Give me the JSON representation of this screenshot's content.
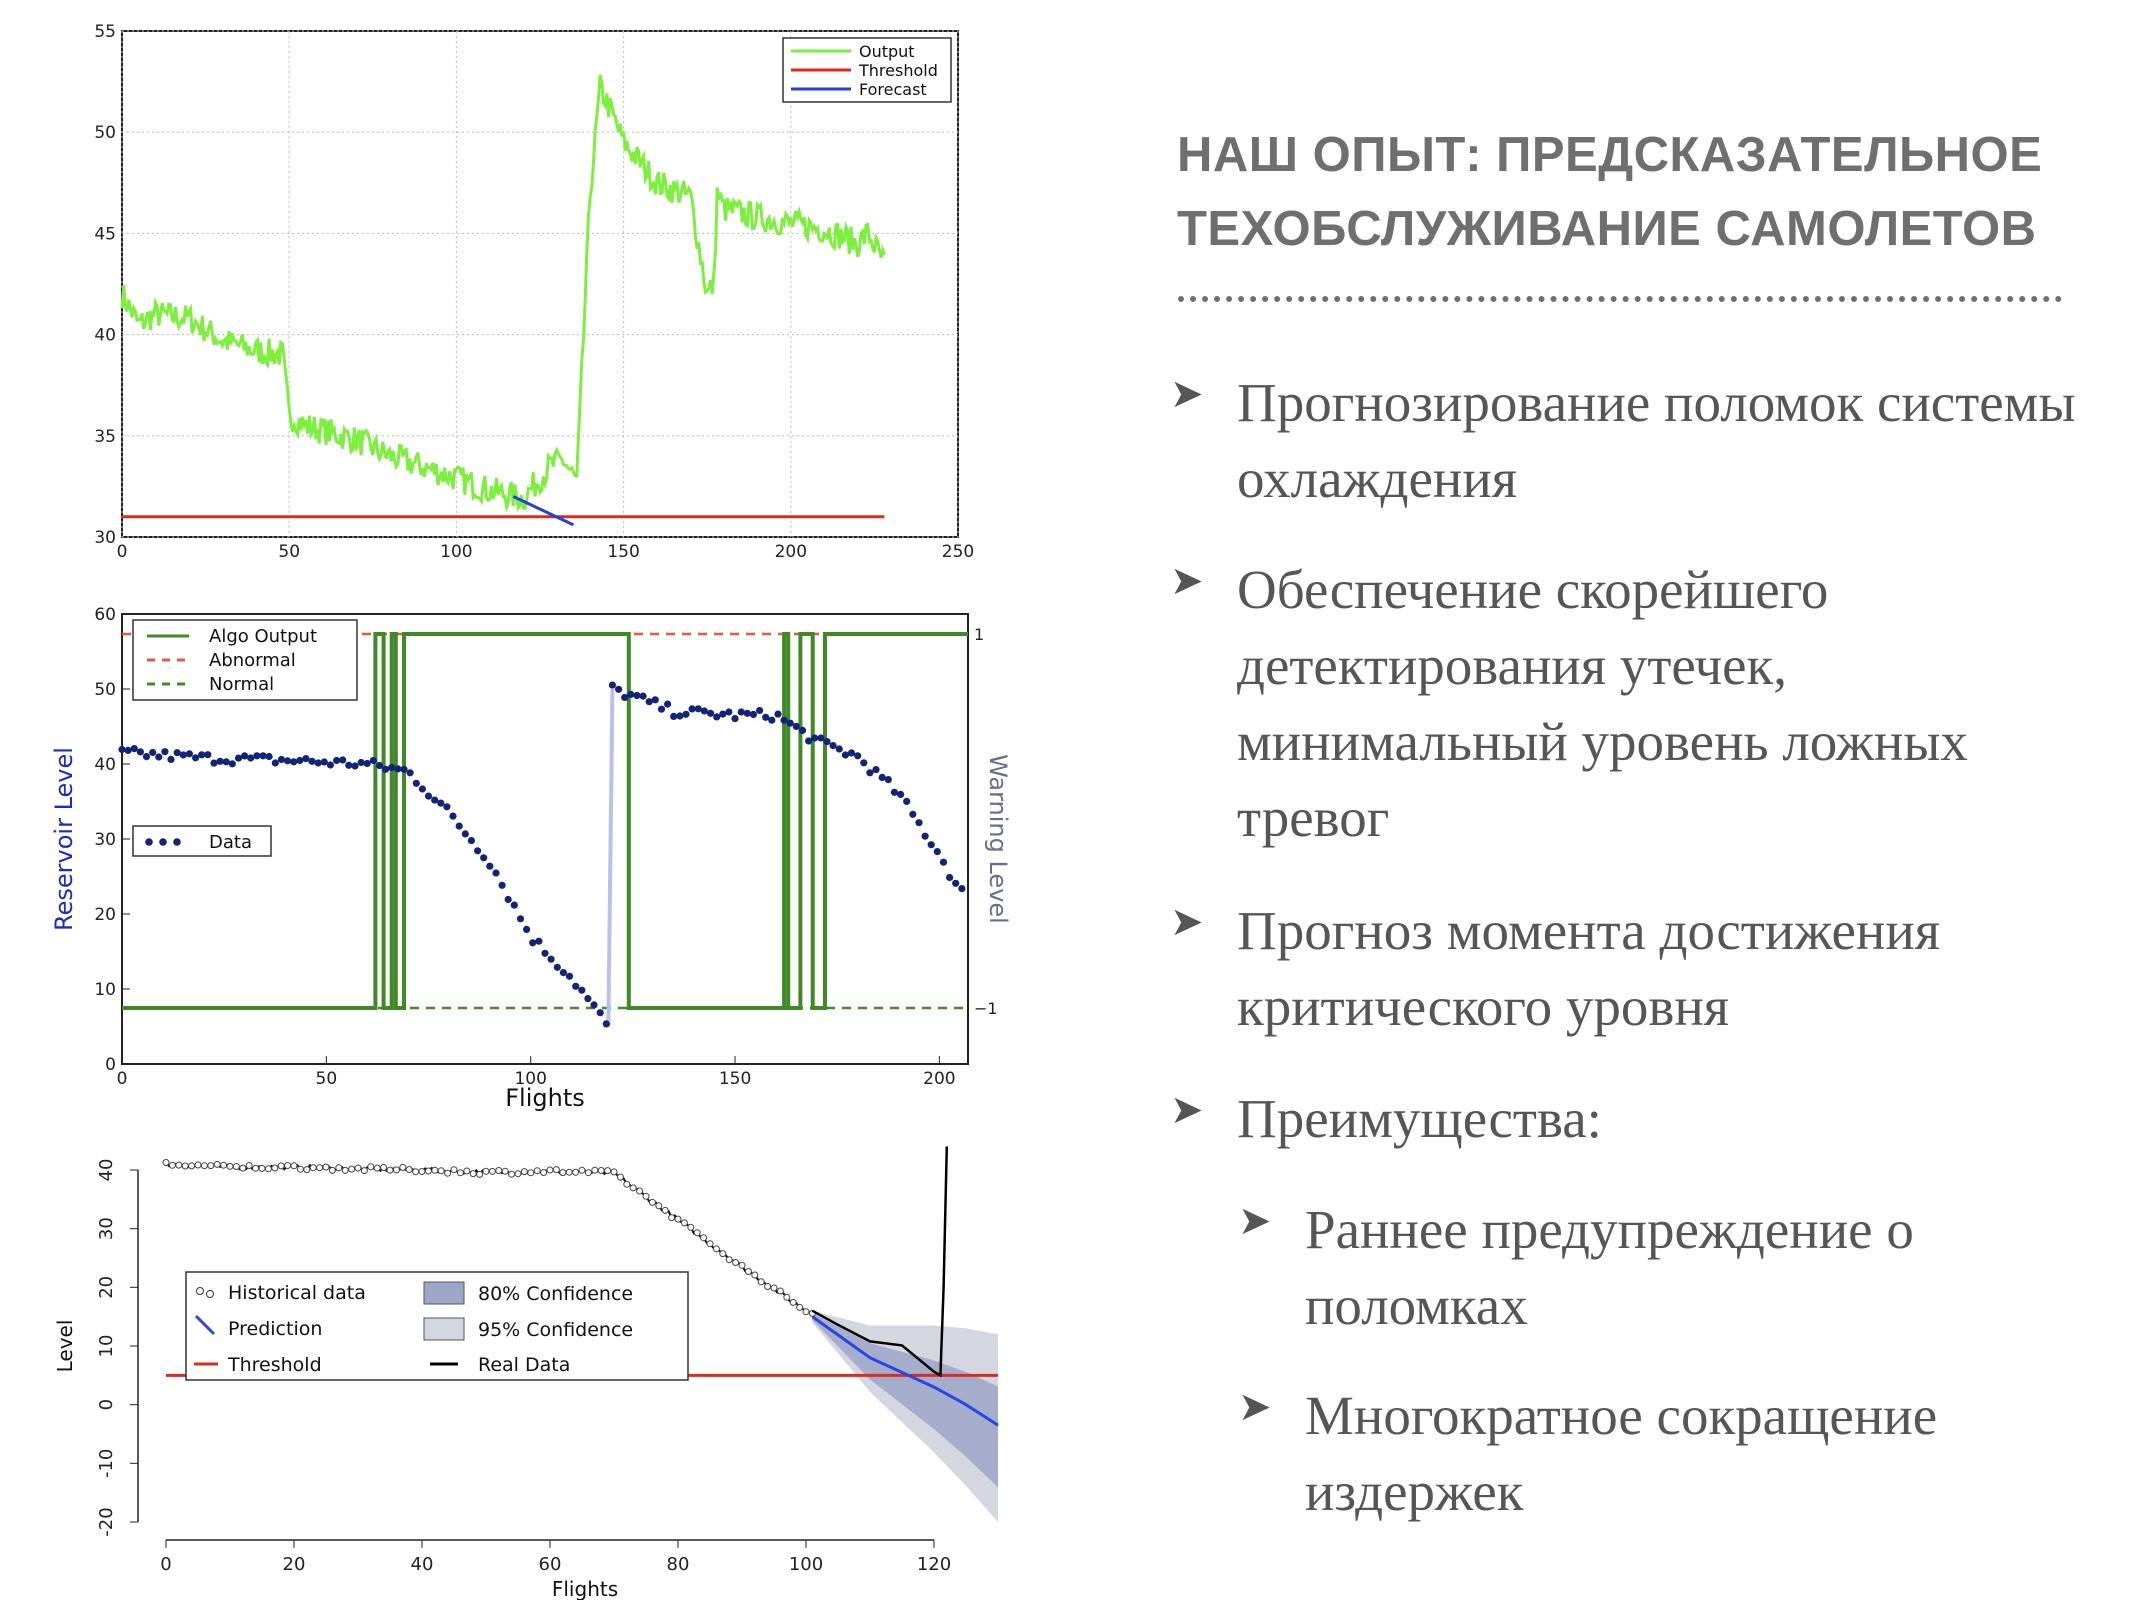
{
  "slide": {
    "title_lines": [
      "НАШ ОПЫТ: ПРЕДСКАЗАТЕЛЬНОЕ",
      "ТЕХОБСЛУЖИВАНИЕ САМОЛЕТОВ"
    ],
    "bullet_marker": "➤",
    "bullets": [
      {
        "text": "Прогнозирование поломок системы охлаждения"
      },
      {
        "text": "Обеспечение скорейшего детектирования утечек, минимальный уровень ложных тревог"
      },
      {
        "text": "Прогноз момента достижения критического уровня"
      },
      {
        "text": "Преимущества:"
      },
      {
        "text": "Раннее предупреждение о поломках",
        "level": 2
      },
      {
        "text": "Многократное сокращение издержек",
        "level": 2
      }
    ]
  },
  "colors": {
    "output": "#7cf03c",
    "threshold": "#dd2a1e",
    "forecast": "#2440dc",
    "algo": "#3f8a25",
    "abnormal": "#e8563c",
    "data": "#14237a",
    "prediction": "#2846e6",
    "ci80": "#9ea6c8",
    "ci95": "#d4d6e0",
    "realdata": "#000000"
  },
  "chart_data": [
    {
      "type": "line",
      "xlim": [
        0,
        250
      ],
      "ylim": [
        30,
        55
      ],
      "xticks": [
        0,
        50,
        100,
        150,
        200,
        250
      ],
      "yticks": [
        30,
        35,
        40,
        45,
        50,
        55
      ],
      "grid": true,
      "legend_position": "top-right",
      "series": [
        {
          "name": "Output",
          "x": [
            0,
            5,
            10,
            20,
            30,
            40,
            48,
            50,
            55,
            70,
            80,
            95,
            110,
            120,
            128,
            132,
            136,
            140,
            143,
            145,
            150,
            160,
            170,
            175,
            177,
            178,
            180,
            190,
            200,
            210,
            220,
            223,
            228
          ],
          "y": [
            42,
            40.5,
            41,
            40.8,
            39.7,
            39.2,
            39,
            36,
            35.5,
            34.8,
            34,
            33.2,
            32.3,
            31.9,
            33.5,
            33.8,
            32.7,
            47,
            52.2,
            51.5,
            49.5,
            47.5,
            46.8,
            42,
            42.5,
            47,
            46.2,
            45.8,
            45.5,
            45.2,
            44.5,
            45,
            43.5
          ]
        },
        {
          "name": "Threshold",
          "x": [
            0,
            228
          ],
          "y": [
            31,
            31
          ]
        },
        {
          "name": "Forecast",
          "x": [
            117,
            135
          ],
          "y": [
            32,
            30.6
          ]
        }
      ]
    },
    {
      "type": "scatter",
      "xlabel": "Flights",
      "ylabel": "Reservoir Level",
      "y2label": "Warning Level",
      "xlim": [
        0,
        207
      ],
      "ylim": [
        0,
        60
      ],
      "xticks": [
        0,
        50,
        100,
        150,
        200
      ],
      "yticks": [
        0,
        10,
        20,
        30,
        40,
        50,
        60
      ],
      "y2ticks": [
        "1",
        "−1"
      ],
      "legend_position": "top-left",
      "series": [
        {
          "name": "Algo Output",
          "steps": [
            [
              0,
              -1
            ],
            [
              62,
              1
            ],
            [
              64,
              -1
            ],
            [
              66,
              1
            ],
            [
              67,
              -1
            ],
            [
              69,
              1
            ],
            [
              124,
              -1
            ],
            [
              162,
              1
            ],
            [
              163,
              -1
            ],
            [
              166,
              1
            ],
            [
              169,
              -1
            ],
            [
              172,
              1
            ],
            [
              207,
              1
            ]
          ]
        },
        {
          "name": "Abnormal",
          "value": 1
        },
        {
          "name": "Normal",
          "value": -1
        },
        {
          "name": "Data",
          "x": [
            0,
            20,
            40,
            60,
            70,
            80,
            90,
            100,
            110,
            119,
            120,
            135,
            150,
            160,
            170,
            180,
            190,
            200,
            205
          ],
          "y": [
            41.5,
            40.8,
            40.5,
            40,
            39,
            33.5,
            27,
            17,
            11.5,
            5,
            50,
            47,
            46.5,
            46.5,
            43,
            41,
            36,
            28,
            23
          ]
        }
      ]
    },
    {
      "type": "line",
      "xlabel": "Flights",
      "ylabel": "Level",
      "xlim": [
        0,
        130
      ],
      "ylim": [
        -20,
        40
      ],
      "xticks": [
        0,
        20,
        40,
        60,
        80,
        100,
        120
      ],
      "yticks": [
        -20,
        -10,
        0,
        10,
        20,
        30,
        40
      ],
      "legend_position": "top-left",
      "series": [
        {
          "name": "Historical data",
          "x": [
            0,
            10,
            20,
            30,
            40,
            50,
            60,
            70,
            73,
            80,
            90,
            100,
            101
          ],
          "y": [
            41,
            40.5,
            40.5,
            40.2,
            40,
            39.6,
            39.8,
            39.5,
            37,
            31.5,
            23.5,
            16,
            15.8
          ]
        },
        {
          "name": "Prediction",
          "x": [
            101,
            110,
            115,
            120,
            125,
            130
          ],
          "y": [
            15,
            8,
            5.5,
            3,
            0,
            -3.5
          ]
        },
        {
          "name": "Threshold",
          "value": 5
        },
        {
          "name": "80% Confidence"
        },
        {
          "name": "95% Confidence"
        },
        {
          "name": "Real Data",
          "x": [
            101,
            105,
            110,
            115,
            120,
            121,
            121.5,
            122
          ],
          "y": [
            16,
            14,
            11,
            10,
            5.5,
            5,
            20,
            44
          ]
        }
      ]
    }
  ]
}
